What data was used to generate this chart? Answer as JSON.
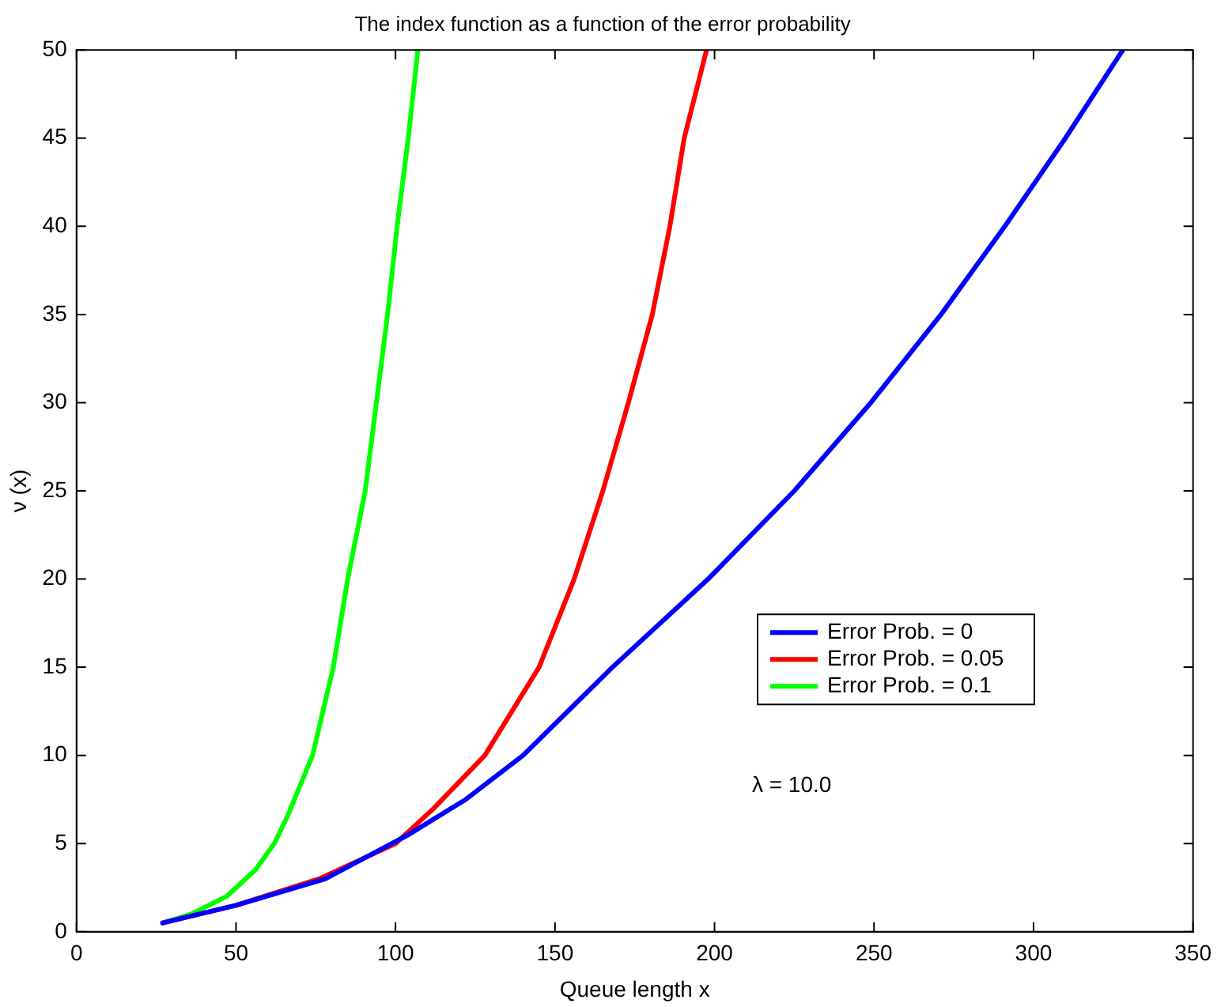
{
  "chart_data": {
    "type": "line",
    "title": "The index function as a function of the error probability",
    "xlabel": "Queue length x",
    "ylabel": "ν (x)",
    "xlim": [
      0,
      350
    ],
    "xticks": [
      0,
      50,
      100,
      150,
      200,
      250,
      300,
      350
    ],
    "ylim": [
      0,
      50
    ],
    "yticks": [
      0,
      5,
      10,
      15,
      20,
      25,
      30,
      35,
      40,
      45,
      50
    ],
    "grid": false,
    "legend": "right",
    "marker": "none",
    "line_style": "solid",
    "annotations": [
      "λ = 10.0"
    ],
    "series": [
      {
        "name": "Error Prob. = 0",
        "color": "#0000ff",
        "x": [
          27,
          50,
          78,
          104,
          122,
          140,
          168,
          198,
          225,
          249,
          271,
          291,
          310,
          328
        ],
        "values": [
          0.5,
          1.5,
          3,
          5.5,
          7.5,
          10,
          15,
          20,
          25,
          30,
          35,
          40,
          45,
          50
        ]
      },
      {
        "name": "Error Prob. = 0.05",
        "color": "#ff0000",
        "x": [
          27,
          50,
          76,
          100,
          112,
          128,
          145,
          156,
          165,
          173,
          180.5,
          186,
          190.5,
          197.5
        ],
        "values": [
          0.5,
          1.5,
          3,
          5,
          7,
          10,
          15,
          20,
          25,
          30,
          35,
          40,
          45,
          50
        ]
      },
      {
        "name": "Error Prob. = 0.1",
        "color": "#00ff00",
        "x": [
          27,
          36,
          47,
          56,
          62,
          66,
          74,
          80.5,
          85,
          90.5,
          94,
          97.5,
          100.5,
          104,
          107
        ],
        "values": [
          0.5,
          1,
          2,
          3.5,
          5,
          6.5,
          10,
          15,
          20,
          25,
          30,
          35,
          40,
          45,
          50
        ]
      }
    ]
  }
}
